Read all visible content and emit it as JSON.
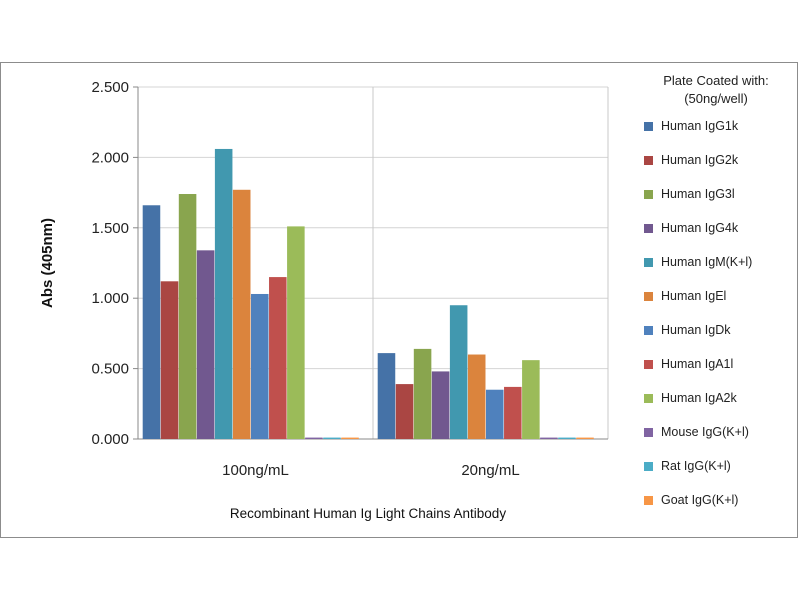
{
  "chart_data": {
    "type": "bar",
    "title": "",
    "xlabel": "Recombinant Human Ig Light Chains Antibody",
    "ylabel": "Abs (405nm)",
    "ylim": [
      0,
      2.5
    ],
    "yticks": [
      "0.000",
      "0.500",
      "1.000",
      "1.500",
      "2.000",
      "2.500"
    ],
    "ytick_values": [
      0,
      0.5,
      1.0,
      1.5,
      2.0,
      2.5
    ],
    "grid": true,
    "legend_position": "right",
    "legend_title": [
      "Plate Coated with:",
      "(50ng/well)"
    ],
    "categories": [
      "100ng/mL",
      "20ng/mL"
    ],
    "series": [
      {
        "name": "Human IgG1k",
        "color": "#4572a7",
        "values": [
          1.66,
          0.61
        ]
      },
      {
        "name": "Human IgG2k",
        "color": "#aa4643",
        "values": [
          1.12,
          0.39
        ]
      },
      {
        "name": "Human IgG3l",
        "color": "#89a54e",
        "values": [
          1.74,
          0.64
        ]
      },
      {
        "name": "Human IgG4k",
        "color": "#71588f",
        "values": [
          1.34,
          0.48
        ]
      },
      {
        "name": "Human IgM(K+l)",
        "color": "#4198af",
        "values": [
          2.06,
          0.95
        ]
      },
      {
        "name": "Human IgEl",
        "color": "#db843d",
        "values": [
          1.77,
          0.6
        ]
      },
      {
        "name": "Human IgDk",
        "color": "#4f81bd",
        "values": [
          1.03,
          0.35
        ]
      },
      {
        "name": "Human IgA1l",
        "color": "#c0504d",
        "values": [
          1.15,
          0.37
        ]
      },
      {
        "name": "Human IgA2k",
        "color": "#9bbb59",
        "values": [
          1.51,
          0.56
        ]
      },
      {
        "name": "Mouse IgG(K+l)",
        "color": "#8064a2",
        "values": [
          0.01,
          0.01
        ]
      },
      {
        "name": "Rat IgG(K+l)",
        "color": "#4bacc6",
        "values": [
          0.01,
          0.01
        ]
      },
      {
        "name": "Goat IgG(K+l)",
        "color": "#f79646",
        "values": [
          0.01,
          0.01
        ]
      }
    ]
  }
}
